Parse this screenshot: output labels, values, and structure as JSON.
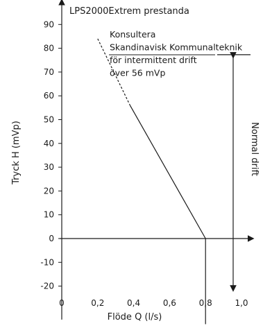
{
  "chart_data": {
    "type": "line",
    "title": "LPS2000Extrem prestanda",
    "xlabel": "Flöde Q (l/s)",
    "ylabel": "Tryck H (mVp)",
    "x_ticks": [
      "0",
      "0,2",
      "0,4",
      "0,6",
      "0,8",
      "1,0"
    ],
    "x_tick_values": [
      0,
      0.2,
      0.4,
      0.6,
      0.8,
      1.0
    ],
    "y_ticks": [
      "90",
      "80",
      "70",
      "60",
      "50",
      "40",
      "30",
      "20",
      "10",
      "0",
      "-10",
      "-20"
    ],
    "y_tick_values": [
      90,
      80,
      70,
      60,
      50,
      40,
      30,
      20,
      10,
      0,
      -10,
      -20
    ],
    "xlim": [
      0,
      1.2
    ],
    "ylim": [
      -23,
      96
    ],
    "grid": false,
    "series": [
      {
        "style": "dashed",
        "x": [
          0.2,
          0.38
        ],
        "y": [
          84,
          56
        ]
      },
      {
        "style": "solid",
        "x": [
          0.38,
          0.8
        ],
        "y": [
          56,
          0
        ]
      }
    ],
    "annotation": {
      "lines": [
        "Konsultera",
        "Skandinavisk Kommunalteknik",
        "för intermittent drift",
        "över 56 mVp"
      ]
    },
    "side_label": "Normal drift",
    "side_range": [
      77,
      -21
    ],
    "drop_line": {
      "x": 0.8,
      "from": 0,
      "to": -36
    }
  }
}
